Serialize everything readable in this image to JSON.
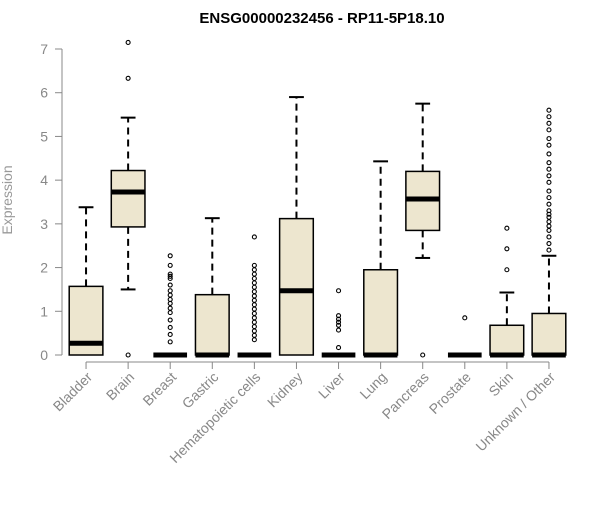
{
  "chart_data": {
    "type": "box",
    "title": "ENSG00000232456 - RP11-5P18.10",
    "xlabel": "",
    "ylabel": "Expression",
    "ylim": [
      0,
      7
    ],
    "yticks": [
      0,
      1,
      2,
      3,
      4,
      5,
      6,
      7
    ],
    "grid": false,
    "colors": {
      "box_fill": "#ede6cf",
      "box_stroke": "#000000",
      "axis": "#888888",
      "title": "#000000"
    },
    "categories": [
      "Bladder",
      "Brain",
      "Breast",
      "Gastric",
      "Hematopoietic cells",
      "Kidney",
      "Liver",
      "Lung",
      "Pancreas",
      "Prostate",
      "Skin",
      "Unknown / Other"
    ],
    "boxes": [
      {
        "category": "Bladder",
        "min": 0,
        "q1": 0,
        "median": 0.27,
        "q3": 1.57,
        "max": 3.38,
        "outliers": []
      },
      {
        "category": "Brain",
        "min": 1.5,
        "q1": 2.93,
        "median": 3.73,
        "q3": 4.22,
        "max": 5.43,
        "outliers": [
          0,
          6.33,
          7.15
        ]
      },
      {
        "category": "Breast",
        "min": 0,
        "q1": 0,
        "median": 0,
        "q3": 0,
        "max": 0,
        "outliers": [
          0.3,
          0.47,
          0.63,
          0.8,
          0.97,
          1.07,
          1.18,
          1.27,
          1.37,
          1.47,
          1.6,
          1.75,
          1.8,
          1.85,
          2.05,
          2.27
        ]
      },
      {
        "category": "Gastric",
        "min": 0,
        "q1": 0,
        "median": 0,
        "q3": 1.38,
        "max": 3.13,
        "outliers": []
      },
      {
        "category": "Hematopoietic cells",
        "min": 0,
        "q1": 0,
        "median": 0,
        "q3": 0,
        "max": 0,
        "outliers": [
          0.35,
          0.45,
          0.55,
          0.65,
          0.75,
          0.85,
          0.95,
          1.05,
          1.15,
          1.25,
          1.35,
          1.45,
          1.55,
          1.65,
          1.75,
          1.85,
          1.95,
          2.05,
          2.7
        ]
      },
      {
        "category": "Kidney",
        "min": 0,
        "q1": 0,
        "median": 1.47,
        "q3": 3.12,
        "max": 5.9,
        "outliers": []
      },
      {
        "category": "Liver",
        "min": 0,
        "q1": 0,
        "median": 0,
        "q3": 0,
        "max": 0,
        "outliers": [
          0.17,
          0.57,
          0.68,
          0.75,
          0.82,
          0.9,
          1.47
        ]
      },
      {
        "category": "Lung",
        "min": 0,
        "q1": 0,
        "median": 0,
        "q3": 1.95,
        "max": 4.43,
        "outliers": []
      },
      {
        "category": "Pancreas",
        "min": 2.22,
        "q1": 2.85,
        "median": 3.57,
        "q3": 4.2,
        "max": 5.75,
        "outliers": [
          0
        ]
      },
      {
        "category": "Prostate",
        "min": 0,
        "q1": 0,
        "median": 0,
        "q3": 0,
        "max": 0,
        "outliers": [
          0.85
        ]
      },
      {
        "category": "Skin",
        "min": 0,
        "q1": 0,
        "median": 0,
        "q3": 0.68,
        "max": 1.43,
        "outliers": [
          1.95,
          2.43,
          2.9
        ]
      },
      {
        "category": "Unknown / Other",
        "min": 0,
        "q1": 0,
        "median": 0,
        "q3": 0.95,
        "max": 2.27,
        "outliers": [
          2.4,
          2.55,
          2.7,
          2.85,
          2.95,
          3.05,
          3.15,
          3.22,
          3.3,
          3.45,
          3.6,
          3.75,
          3.95,
          4.1,
          4.25,
          4.4,
          4.6,
          4.8,
          4.95,
          5.15,
          5.3,
          5.45,
          5.6
        ]
      }
    ]
  }
}
